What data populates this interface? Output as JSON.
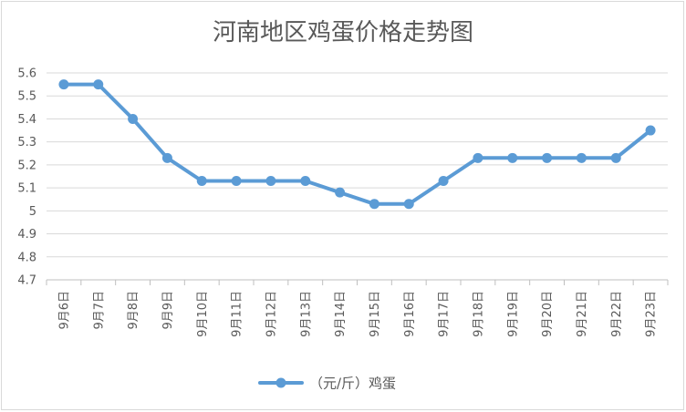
{
  "chart_data": {
    "type": "line",
    "title": "河南地区鸡蛋价格走势图",
    "categories": [
      "9月6日",
      "9月7日",
      "9月8日",
      "9月9日",
      "9月10日",
      "9月11日",
      "9月12日",
      "9月13日",
      "9月14日",
      "9月15日",
      "9月16日",
      "9月17日",
      "9月18日",
      "9月19日",
      "9月20日",
      "9月21日",
      "9月22日",
      "9月23日"
    ],
    "series": [
      {
        "name": "（元/斤）鸡蛋",
        "values": [
          5.55,
          5.55,
          5.4,
          5.23,
          5.13,
          5.13,
          5.13,
          5.13,
          5.08,
          5.03,
          5.03,
          5.13,
          5.23,
          5.23,
          5.23,
          5.23,
          5.23,
          5.35
        ],
        "color": "#5b9bd5"
      }
    ],
    "ylim": [
      4.7,
      5.6
    ],
    "yticks": [
      "5.6",
      "5.5",
      "5.4",
      "5.3",
      "5.2",
      "5.1",
      "5",
      "4.9",
      "4.8",
      "4.7"
    ],
    "grid": true,
    "legend": "bottom"
  }
}
